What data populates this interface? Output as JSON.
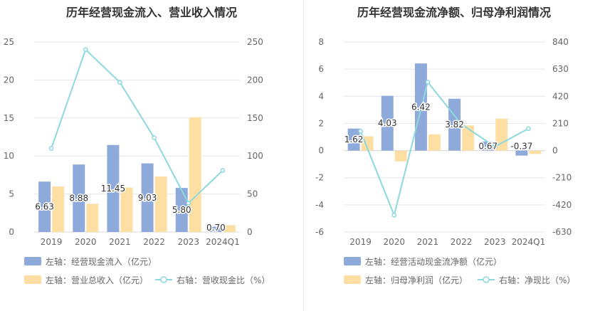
{
  "chart_data": [
    {
      "type": "bar",
      "title": "历年经营现金流入、营业收入情况",
      "categories": [
        "2019",
        "2020",
        "2021",
        "2022",
        "2023",
        "2024Q1"
      ],
      "left_axis": {
        "ticks": [
          "0",
          "5",
          "10",
          "15",
          "20",
          "25"
        ],
        "ylim": [
          0,
          25
        ]
      },
      "right_axis": {
        "ticks": [
          "0",
          "50",
          "100",
          "150",
          "200",
          "250"
        ],
        "ylim": [
          0,
          250
        ]
      },
      "series": [
        {
          "name": "经营现金流入",
          "axis": "left",
          "type": "bar",
          "color": "#8eaadb",
          "values": [
            6.63,
            8.88,
            11.45,
            9.03,
            5.8,
            0.7
          ],
          "labels": [
            "6.63",
            "8.88",
            "11.45",
            "9.03",
            "5.80",
            "0.70"
          ]
        },
        {
          "name": "营业总收入",
          "axis": "left",
          "type": "bar",
          "color": "#fddfa4",
          "values": [
            6.0,
            3.7,
            5.85,
            7.3,
            15.1,
            0.9
          ]
        },
        {
          "name": "营收现金比",
          "axis": "right",
          "type": "line",
          "color": "#8dd8dc",
          "values": [
            110,
            240,
            197,
            124,
            38,
            81
          ]
        }
      ],
      "legend": [
        {
          "axis_label": "左轴：",
          "name": "经营现金流入（亿元）",
          "kind": "bar",
          "color": "#8eaadb"
        },
        {
          "axis_label": "左轴：",
          "name": "营业总收入（亿元）",
          "kind": "bar",
          "color": "#fddfa4"
        },
        {
          "axis_label": "右轴：",
          "name": "营收现金比（%）",
          "kind": "line",
          "color": "#8dd8dc"
        }
      ]
    },
    {
      "type": "bar",
      "title": "历年经营现金流净额、归母净利润情况",
      "categories": [
        "2019",
        "2020",
        "2021",
        "2022",
        "2023",
        "2024Q1"
      ],
      "left_axis": {
        "ticks": [
          "-6",
          "-4",
          "-2",
          "0",
          "2",
          "4",
          "6",
          "8"
        ],
        "ylim": [
          -6,
          8
        ]
      },
      "right_axis": {
        "ticks": [
          "-630",
          "-420",
          "-210",
          "0",
          "210",
          "420",
          "630",
          "840"
        ],
        "ylim": [
          -630,
          840
        ]
      },
      "series": [
        {
          "name": "经营活动现金流净额",
          "axis": "left",
          "type": "bar",
          "color": "#8eaadb",
          "values": [
            1.62,
            4.03,
            6.42,
            3.82,
            0.67,
            -0.37
          ],
          "labels": [
            "1.62",
            "4.03",
            "6.42",
            "3.82",
            "0.67",
            "-0.37"
          ]
        },
        {
          "name": "归母净利润",
          "axis": "left",
          "type": "bar",
          "color": "#fddfa4",
          "values": [
            1.05,
            -0.8,
            1.2,
            1.85,
            2.35,
            -0.25
          ]
        },
        {
          "name": "净现比",
          "axis": "right",
          "type": "line",
          "color": "#8dd8dc",
          "values": [
            150,
            -500,
            530,
            205,
            30,
            170
          ]
        }
      ],
      "legend": [
        {
          "axis_label": "左轴：",
          "name": "经营活动现金流净额（亿元）",
          "kind": "bar",
          "color": "#8eaadb"
        },
        {
          "axis_label": "左轴：",
          "name": "归母净利润（亿元）",
          "kind": "bar",
          "color": "#fddfa4"
        },
        {
          "axis_label": "右轴：",
          "name": "净现比（%）",
          "kind": "line",
          "color": "#8dd8dc"
        }
      ]
    }
  ]
}
